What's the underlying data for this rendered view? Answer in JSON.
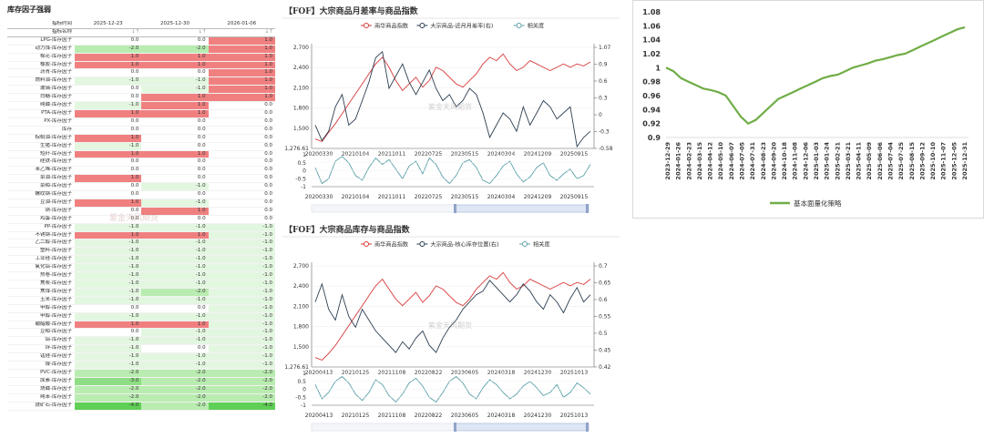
{
  "table": {
    "title": "库存因子强弱",
    "header_label": "指标时间",
    "header_label2": "指标名称",
    "dates": [
      "2025-12-23",
      "2025-12-30",
      "2026-01-06"
    ],
    "sort_mark": "↓↑",
    "sort_mark_active": "↓↑",
    "watermark": "紫金天风期货",
    "rows": [
      {
        "name": "LPG-库存因子",
        "v": [
          "0.0",
          "0.0",
          "1.0"
        ]
      },
      {
        "name": "动力煤-库存因子",
        "v": [
          "-2.0",
          "-2.0",
          "1.0"
        ]
      },
      {
        "name": "棉花-库存因子",
        "v": [
          "1.0",
          "1.0",
          "1.0"
        ]
      },
      {
        "name": "橡胶-库存因子",
        "v": [
          "1.0",
          "1.0",
          "1.0"
        ]
      },
      {
        "name": "沥青-库存因子",
        "v": [
          "0.0",
          "0.0",
          "1.0"
        ]
      },
      {
        "name": "燃料油-库存因子",
        "v": [
          "-1.0",
          "-1.0",
          "1.0"
        ]
      },
      {
        "name": "玻璃-库存因子",
        "v": [
          "0.0",
          "-1.0",
          "1.0"
        ]
      },
      {
        "name": "白糖-库存因子",
        "v": [
          "0.0",
          "1.0",
          "1.0"
        ]
      },
      {
        "name": "纯碱-库存因子",
        "v": [
          "-1.0",
          "1.0",
          "0.0"
        ]
      },
      {
        "name": "PTA-库存因子",
        "v": [
          "1.0",
          "1.0",
          "0.0"
        ]
      },
      {
        "name": "PX-库存因子",
        "v": [
          "0.0",
          "0.0",
          "0.0"
        ]
      },
      {
        "name": "库存",
        "v": [
          "0.0",
          "0.0",
          "0.0"
        ]
      },
      {
        "name": "棕榈油-库存因子",
        "v": [
          "1.0",
          "0.0",
          "0.0"
        ]
      },
      {
        "name": "生猪-库存因子",
        "v": [
          "-1.0",
          "0.0",
          "0.0"
        ]
      },
      {
        "name": "短纤-库存因子",
        "v": [
          "1.0",
          "1.0",
          "0.0"
        ]
      },
      {
        "name": "硅铁-库存因子",
        "v": [
          "0.0",
          "0.0",
          "0.0"
        ]
      },
      {
        "name": "苯乙烯-库存因子",
        "v": [
          "0.0",
          "0.0",
          "0.0"
        ]
      },
      {
        "name": "菜油-库存因子",
        "v": [
          "1.0",
          "0.0",
          "0.0"
        ]
      },
      {
        "name": "菜粕-库存因子",
        "v": [
          "0.0",
          "-1.0",
          "0.0"
        ]
      },
      {
        "name": "螺纹钢-库存因子",
        "v": [
          "0.0",
          "0.0",
          "0.0"
        ]
      },
      {
        "name": "豆油-库存因子",
        "v": [
          "1.0",
          "-1.0",
          "0.0"
        ]
      },
      {
        "name": "铜-库存因子",
        "v": [
          "0.0",
          "1.0",
          "0.0"
        ]
      },
      {
        "name": "鸡蛋-库存因子",
        "v": [
          "0.0",
          "0.0",
          "0.0"
        ]
      },
      {
        "name": "PP-库存因子",
        "v": [
          "-1.0",
          "-1.0",
          "-1.0"
        ]
      },
      {
        "name": "不锈钢-库存因子",
        "v": [
          "1.0",
          "1.0",
          "-1.0"
        ]
      },
      {
        "name": "乙二醇-库存因子",
        "v": [
          "-1.0",
          "-1.0",
          "-1.0"
        ]
      },
      {
        "name": "塑料-库存因子",
        "v": [
          "-1.0",
          "-1.0",
          "-1.0"
        ]
      },
      {
        "name": "工业硅-库存因子",
        "v": [
          "-1.0",
          "-1.0",
          "-1.0"
        ]
      },
      {
        "name": "氧化铝-库存因子",
        "v": [
          "-1.0",
          "-1.0",
          "-1.0"
        ]
      },
      {
        "name": "热卷-库存因子",
        "v": [
          "-1.0",
          "-1.0",
          "-1.0"
        ]
      },
      {
        "name": "焦炭-库存因子",
        "v": [
          "-1.0",
          "-1.0",
          "-1.0"
        ]
      },
      {
        "name": "焦煤-库存因子",
        "v": [
          "-1.0",
          "-2.0",
          "-1.0"
        ]
      },
      {
        "name": "玉米-库存因子",
        "v": [
          "-1.0",
          "-1.0",
          "-1.0"
        ]
      },
      {
        "name": "甲醇-库存因子",
        "v": [
          "0.0",
          "0.0",
          "-1.0"
        ]
      },
      {
        "name": "甲醇-库存因子",
        "v": [
          "-1.0",
          "-1.0",
          "-1.0"
        ]
      },
      {
        "name": "硼醋酸-库存因子",
        "v": [
          "1.0",
          "1.0",
          "-1.0"
        ]
      },
      {
        "name": "豆粕-库存因子",
        "v": [
          "0.0",
          "-1.0",
          "-1.0"
        ]
      },
      {
        "name": "铝-库存因子",
        "v": [
          "-1.0",
          "-1.0",
          "-1.0"
        ]
      },
      {
        "name": "锌-库存因子",
        "v": [
          "-1.0",
          "0.0",
          "-1.0"
        ]
      },
      {
        "name": "锰硅-库存因子",
        "v": [
          "-1.0",
          "-1.0",
          "-1.0"
        ]
      },
      {
        "name": "镍-库存因子",
        "v": [
          "-1.0",
          "-1.0",
          "-1.0"
        ]
      },
      {
        "name": "PVC-库存因子",
        "v": [
          "-2.0",
          "-2.0",
          "-2.0"
        ]
      },
      {
        "name": "尿素-库存因子",
        "v": [
          "-3.0",
          "-2.0",
          "-2.0"
        ]
      },
      {
        "name": "烧碱-库存因子",
        "v": [
          "-2.0",
          "-2.0",
          "-2.0"
        ]
      },
      {
        "name": "纯苯-库存因子",
        "v": [
          "-2.0",
          "-2.0",
          "-2.0"
        ]
      },
      {
        "name": "铁矿石-库存因子",
        "v": [
          "-4.0",
          "-2.0",
          "-4.0"
        ]
      }
    ]
  },
  "chart_data": [
    {
      "type": "line",
      "title": "【FOF】大宗商品月差率与商品指数",
      "series": [
        {
          "name": "南华商品指数",
          "axis": "left",
          "color": "#d93a3a",
          "values": [
            1420,
            1380,
            1520,
            1650,
            1800,
            1950,
            2100,
            2250,
            2400,
            2550,
            2650,
            2500,
            2300,
            2150,
            2250,
            2350,
            2200,
            2300,
            2500,
            2450,
            2350,
            2250,
            2200,
            2300,
            2400,
            2550,
            2650,
            2600,
            2700,
            2550,
            2450,
            2500,
            2600,
            2550,
            2500,
            2450,
            2500,
            2550,
            2500,
            2550,
            2520,
            2580
          ]
        },
        {
          "name": "大宗商品-近月月差率(右)",
          "axis": "right",
          "color": "#2c3e50",
          "values": [
            -0.2,
            -0.45,
            -0.3,
            0.1,
            0.3,
            -0.2,
            -0.1,
            0.2,
            0.5,
            0.9,
            1.0,
            0.4,
            0.6,
            0.8,
            0.5,
            0.3,
            0.5,
            0.7,
            0.4,
            0.2,
            0.3,
            0.1,
            0.2,
            0.4,
            0.3,
            0.0,
            -0.4,
            -0.2,
            0.0,
            -0.1,
            -0.3,
            0.1,
            -0.2,
            0.0,
            0.2,
            0.1,
            -0.1,
            0.0,
            0.1,
            -0.55,
            -0.4,
            -0.3
          ]
        },
        {
          "name": "相关度",
          "axis": "sub",
          "color": "#5aa0a8",
          "values": [
            0.2,
            -0.8,
            -0.5,
            0.6,
            0.9,
            0.5,
            -0.3,
            -0.6,
            0.2,
            0.8,
            0.4,
            0.7,
            0.1,
            -0.5,
            0.3,
            0.6,
            -0.2,
            0.8,
            0.4,
            -0.4,
            -0.8,
            -0.3,
            0.5,
            0.7,
            0.2,
            -0.6,
            -0.8,
            -0.3,
            0.3,
            0.6,
            -0.2,
            -0.7,
            -0.4,
            0.2,
            0.5,
            -0.3,
            -0.6,
            -0.2,
            0.1,
            -0.5,
            -0.3,
            0.4
          ]
        }
      ],
      "left_ticks": [
        "2,700",
        "2,400",
        "2,100",
        "1,800",
        "1,500",
        "1,276.61"
      ],
      "right_ticks": [
        "1.07",
        "0.9",
        "0.6",
        "0.3",
        "0",
        "-0.3",
        "-0.58"
      ],
      "sub_ticks": [
        "1",
        "0.5",
        "0",
        "-0.5",
        "-1"
      ],
      "x_labels": [
        "20200330",
        "20210104",
        "20211011",
        "20220725",
        "20230515",
        "20240304",
        "20241209",
        "20250915"
      ],
      "watermark": "紫金天风期货",
      "ylim_left": [
        1276.61,
        2800
      ],
      "ylim_right": [
        -0.58,
        1.07
      ],
      "ylim_sub": [
        -1,
        1
      ]
    },
    {
      "type": "line",
      "title": "【FOF】大宗商品库存与商品指数",
      "series": [
        {
          "name": "南华商品指数",
          "axis": "left",
          "color": "#d93a3a",
          "values": [
            1420,
            1380,
            1480,
            1600,
            1750,
            1900,
            2050,
            2200,
            2350,
            2500,
            2600,
            2450,
            2300,
            2200,
            2300,
            2400,
            2250,
            2350,
            2500,
            2450,
            2350,
            2250,
            2200,
            2300,
            2450,
            2550,
            2650,
            2600,
            2700,
            2550,
            2450,
            2500,
            2600,
            2550,
            2500,
            2450,
            2500,
            2550,
            2500,
            2550,
            2520,
            2600
          ]
        },
        {
          "name": "大宗商品-核心库存位置(右)",
          "axis": "right",
          "color": "#2c3e50",
          "values": [
            0.6,
            0.65,
            0.58,
            0.55,
            0.62,
            0.56,
            0.53,
            0.58,
            0.55,
            0.52,
            0.5,
            0.48,
            0.46,
            0.49,
            0.47,
            0.5,
            0.52,
            0.48,
            0.46,
            0.5,
            0.53,
            0.55,
            0.58,
            0.6,
            0.62,
            0.63,
            0.66,
            0.64,
            0.62,
            0.6,
            0.62,
            0.65,
            0.63,
            0.6,
            0.58,
            0.62,
            0.6,
            0.57,
            0.61,
            0.64,
            0.6,
            0.62
          ]
        },
        {
          "name": "相关度",
          "axis": "sub",
          "color": "#5aa0a8",
          "values": [
            0.3,
            -0.6,
            -0.2,
            0.5,
            0.8,
            0.4,
            -0.3,
            -0.7,
            -0.2,
            0.6,
            0.3,
            -0.4,
            -0.8,
            -0.3,
            0.4,
            0.7,
            0.2,
            -0.5,
            -0.8,
            -0.2,
            0.5,
            0.8,
            0.4,
            -0.3,
            -0.6,
            0.1,
            0.6,
            0.3,
            -0.2,
            -0.6,
            -0.3,
            0.2,
            0.5,
            0.1,
            -0.4,
            -0.2,
            0.3,
            -0.5,
            -0.2,
            0.4,
            0.1,
            -0.3
          ]
        }
      ],
      "left_ticks": [
        "2,700",
        "2,400",
        "2,100",
        "1,800",
        "1,500",
        "1,276.61"
      ],
      "right_ticks": [
        "0.7",
        "0.65",
        "0.6",
        "0.55",
        "0.5",
        "0.45",
        "0.42"
      ],
      "sub_ticks": [
        "1",
        "0.5",
        "0",
        "-0.5",
        "-1"
      ],
      "x_labels": [
        "20200413",
        "20210125",
        "20211108",
        "20220822",
        "20230605",
        "20240318",
        "20241230",
        "20251013"
      ],
      "watermark": "紫金天风期货",
      "ylim_left": [
        1276.61,
        2800
      ],
      "ylim_right": [
        0.42,
        0.7
      ],
      "ylim_sub": [
        -1,
        1
      ]
    },
    {
      "type": "line",
      "series": [
        {
          "name": "基本面量化策略",
          "color": "#70ad47",
          "values": [
            1.0,
            0.995,
            0.985,
            0.98,
            0.975,
            0.97,
            0.968,
            0.965,
            0.96,
            0.945,
            0.93,
            0.92,
            0.925,
            0.935,
            0.945,
            0.955,
            0.96,
            0.965,
            0.97,
            0.975,
            0.98,
            0.985,
            0.988,
            0.99,
            0.995,
            1.0,
            1.003,
            1.006,
            1.01,
            1.012,
            1.015,
            1.018,
            1.02,
            1.025,
            1.03,
            1.035,
            1.04,
            1.045,
            1.05,
            1.055,
            1.058
          ]
        }
      ],
      "y_ticks": [
        "1.08",
        "1.06",
        "1.04",
        "1.02",
        "1",
        "0.98",
        "0.96",
        "0.94",
        "0.92",
        "0.9"
      ],
      "x_labels": [
        "2023-12-29",
        "2024-01-26",
        "2024-02-23",
        "2024-03-15",
        "2024-04-12",
        "2024-05-10",
        "2024-06-07",
        "2024-07-05",
        "2024-07-31",
        "2024-08-23",
        "2024-09-20",
        "2024-10-18",
        "2024-11-08",
        "2024-12-06",
        "2025-01-03",
        "2025-01-24",
        "2025-02-21",
        "2025-03-21",
        "2025-04-11",
        "2025-05-09",
        "2025-06-06",
        "2025-07-04",
        "2025-07-25",
        "2025-08-15",
        "2025-09-12",
        "2025-10-10",
        "2025-11-07",
        "2025-12-05",
        "2025-12-31"
      ],
      "ylim": [
        0.9,
        1.08
      ]
    }
  ]
}
